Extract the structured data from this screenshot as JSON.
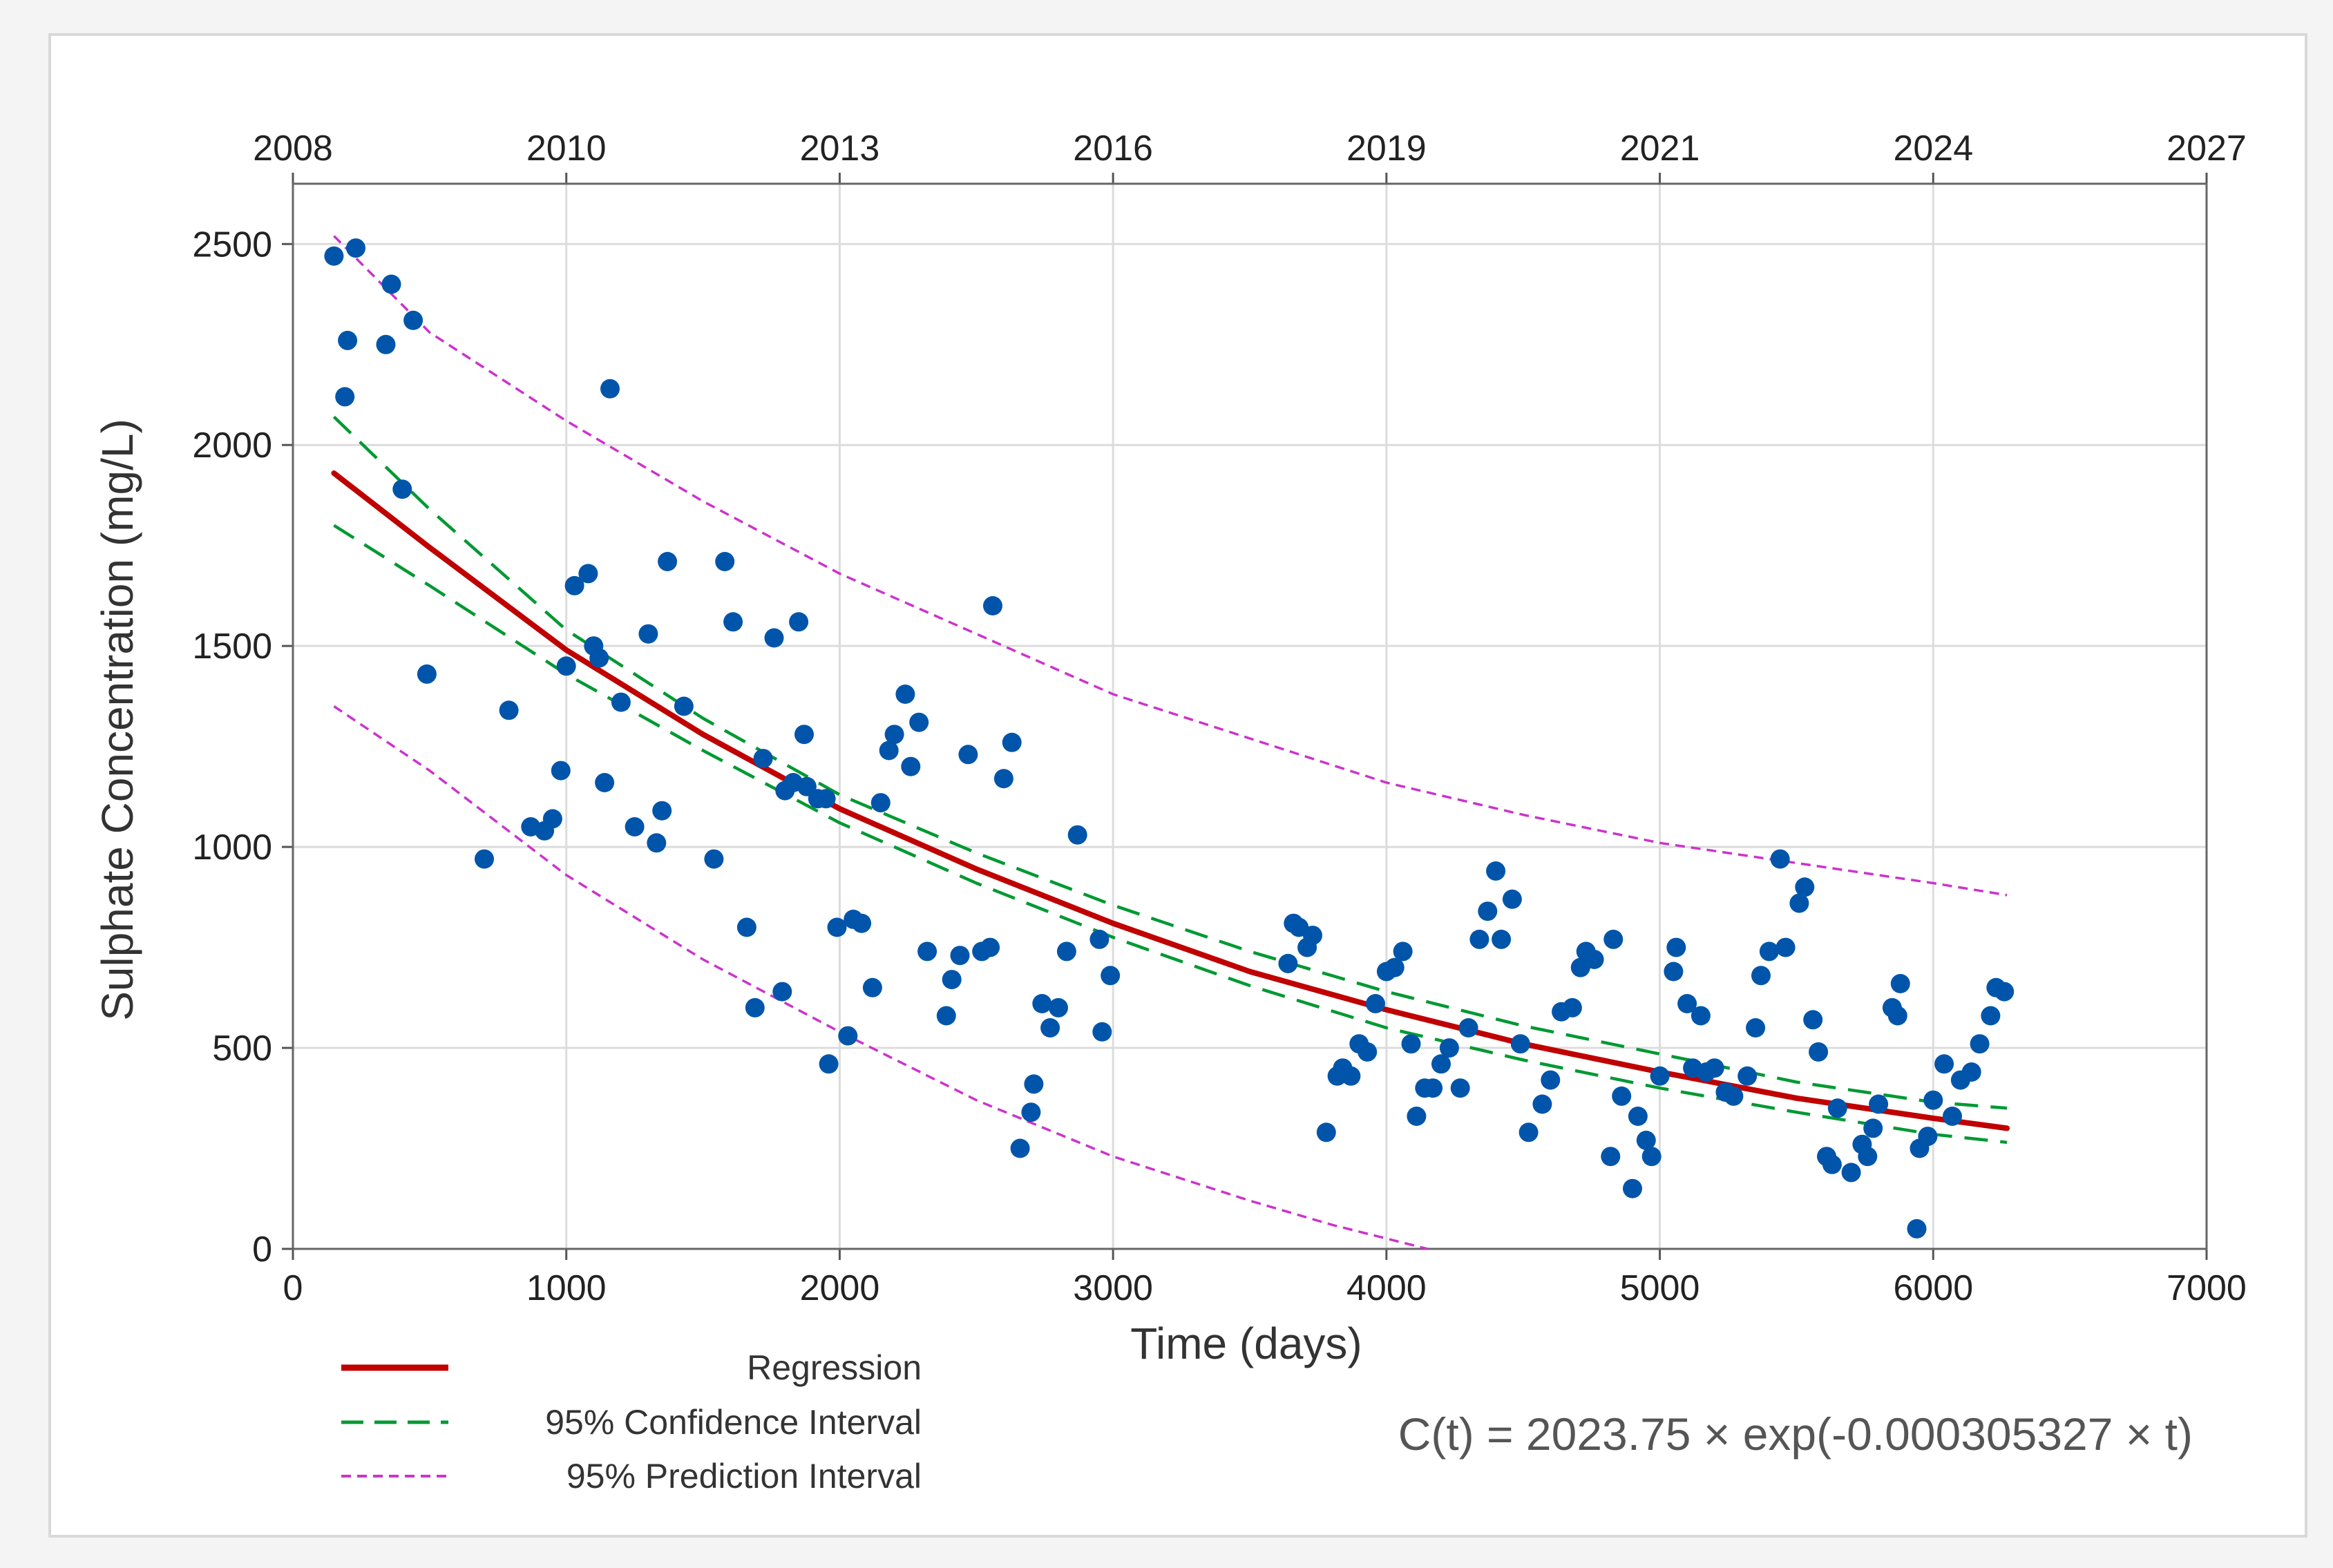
{
  "chart_data": {
    "type": "scatter",
    "xlabel": "Time (days)",
    "ylabel": "Sulphate Concentration (mg/L)",
    "xlim": [
      0,
      7000
    ],
    "ylim": [
      0,
      2650
    ],
    "grid": true,
    "x_ticks": [
      0,
      1000,
      2000,
      3000,
      4000,
      5000,
      6000,
      7000
    ],
    "y_ticks": [
      0,
      500,
      1000,
      1500,
      2000,
      2500
    ],
    "top_axis": {
      "labels": [
        "2008",
        "2010",
        "2013",
        "2016",
        "2019",
        "2021",
        "2024",
        "2027"
      ],
      "positions_days": [
        0,
        1000,
        2000,
        3000,
        4000,
        5000,
        6000,
        7000
      ]
    },
    "legend_position": "bottom-left",
    "legend": [
      "Regression",
      "95% Confidence Interval",
      "95% Prediction Interval"
    ],
    "equation": "C(t) = 2023.75 × exp(-0.000305327 × t)",
    "series": [
      {
        "name": "Regression",
        "kind": "line",
        "color": "#c00000",
        "x": [
          150,
          500,
          1000,
          1500,
          2000,
          2500,
          3000,
          3500,
          4000,
          4500,
          5000,
          5500,
          6000,
          6270
        ],
        "values": [
          1930,
          1745,
          1490,
          1280,
          1095,
          945,
          810,
          690,
          595,
          510,
          440,
          375,
          325,
          300
        ]
      },
      {
        "name": "95% Confidence Interval (upper)",
        "kind": "dashed-line",
        "color": "#009933",
        "x": [
          150,
          500,
          1000,
          1500,
          2000,
          2500,
          3000,
          3500,
          4000,
          4500,
          5000,
          5500,
          6000,
          6270
        ],
        "values": [
          2070,
          1840,
          1540,
          1320,
          1130,
          985,
          855,
          740,
          640,
          555,
          485,
          415,
          365,
          350
        ]
      },
      {
        "name": "95% Confidence Interval (lower)",
        "kind": "dashed-line",
        "color": "#009933",
        "x": [
          150,
          500,
          1000,
          1500,
          2000,
          2500,
          3000,
          3500,
          4000,
          4500,
          5000,
          5500,
          6000,
          6270
        ],
        "values": [
          1800,
          1650,
          1430,
          1240,
          1060,
          910,
          775,
          655,
          550,
          470,
          400,
          340,
          285,
          265
        ]
      },
      {
        "name": "95% Prediction Interval (upper)",
        "kind": "dotted-line",
        "color": "#cc33cc",
        "x": [
          150,
          500,
          1000,
          1500,
          2000,
          2500,
          3000,
          3500,
          4000,
          4500,
          5000,
          5500,
          6000,
          6270
        ],
        "values": [
          2520,
          2280,
          2060,
          1860,
          1680,
          1530,
          1380,
          1270,
          1160,
          1080,
          1010,
          960,
          910,
          880
        ]
      },
      {
        "name": "95% Prediction Interval (lower)",
        "kind": "dotted-line",
        "color": "#cc33cc",
        "x": [
          150,
          500,
          1000,
          1500,
          2000,
          2500,
          3000,
          3500,
          3800,
          4150
        ],
        "values": [
          1350,
          1190,
          930,
          720,
          540,
          370,
          230,
          120,
          60,
          0
        ]
      },
      {
        "name": "Observations",
        "kind": "points",
        "color": "#0055aa",
        "points": [
          [
            150,
            2470
          ],
          [
            230,
            2490
          ],
          [
            190,
            2120
          ],
          [
            200,
            2260
          ],
          [
            340,
            2250
          ],
          [
            360,
            2400
          ],
          [
            440,
            2310
          ],
          [
            400,
            1890
          ],
          [
            490,
            1430
          ],
          [
            700,
            970
          ],
          [
            790,
            1340
          ],
          [
            870,
            1050
          ],
          [
            920,
            1040
          ],
          [
            950,
            1070
          ],
          [
            980,
            1190
          ],
          [
            1000,
            1450
          ],
          [
            1030,
            1650
          ],
          [
            1080,
            1680
          ],
          [
            1100,
            1500
          ],
          [
            1120,
            1470
          ],
          [
            1140,
            1160
          ],
          [
            1160,
            2140
          ],
          [
            1200,
            1360
          ],
          [
            1250,
            1050
          ],
          [
            1300,
            1530
          ],
          [
            1330,
            1010
          ],
          [
            1350,
            1090
          ],
          [
            1370,
            1710
          ],
          [
            1430,
            1350
          ],
          [
            1540,
            970
          ],
          [
            1580,
            1710
          ],
          [
            1610,
            1560
          ],
          [
            1660,
            800
          ],
          [
            1690,
            600
          ],
          [
            1720,
            1220
          ],
          [
            1760,
            1520
          ],
          [
            1790,
            640
          ],
          [
            1800,
            1140
          ],
          [
            1830,
            1160
          ],
          [
            1850,
            1560
          ],
          [
            1870,
            1280
          ],
          [
            1880,
            1150
          ],
          [
            1920,
            1120
          ],
          [
            1950,
            1120
          ],
          [
            1960,
            460
          ],
          [
            1990,
            800
          ],
          [
            2030,
            530
          ],
          [
            2050,
            820
          ],
          [
            2080,
            810
          ],
          [
            2120,
            650
          ],
          [
            2150,
            1110
          ],
          [
            2180,
            1240
          ],
          [
            2200,
            1280
          ],
          [
            2240,
            1380
          ],
          [
            2260,
            1200
          ],
          [
            2290,
            1310
          ],
          [
            2320,
            740
          ],
          [
            2390,
            580
          ],
          [
            2410,
            670
          ],
          [
            2440,
            730
          ],
          [
            2470,
            1230
          ],
          [
            2520,
            740
          ],
          [
            2550,
            750
          ],
          [
            2560,
            1600
          ],
          [
            2600,
            1170
          ],
          [
            2630,
            1260
          ],
          [
            2660,
            250
          ],
          [
            2700,
            340
          ],
          [
            2710,
            410
          ],
          [
            2740,
            610
          ],
          [
            2770,
            550
          ],
          [
            2800,
            600
          ],
          [
            2830,
            740
          ],
          [
            2870,
            1030
          ],
          [
            2950,
            770
          ],
          [
            2960,
            540
          ],
          [
            2990,
            680
          ],
          [
            3640,
            710
          ],
          [
            3660,
            810
          ],
          [
            3680,
            800
          ],
          [
            3710,
            750
          ],
          [
            3730,
            780
          ],
          [
            3780,
            290
          ],
          [
            3820,
            430
          ],
          [
            3840,
            450
          ],
          [
            3870,
            430
          ],
          [
            3900,
            510
          ],
          [
            3930,
            490
          ],
          [
            3960,
            610
          ],
          [
            4000,
            690
          ],
          [
            4030,
            700
          ],
          [
            4060,
            740
          ],
          [
            4090,
            510
          ],
          [
            4110,
            330
          ],
          [
            4140,
            400
          ],
          [
            4170,
            400
          ],
          [
            4200,
            460
          ],
          [
            4230,
            500
          ],
          [
            4270,
            400
          ],
          [
            4300,
            550
          ],
          [
            4340,
            770
          ],
          [
            4370,
            840
          ],
          [
            4400,
            940
          ],
          [
            4420,
            770
          ],
          [
            4460,
            870
          ],
          [
            4490,
            510
          ],
          [
            4520,
            290
          ],
          [
            4570,
            360
          ],
          [
            4600,
            420
          ],
          [
            4640,
            590
          ],
          [
            4680,
            600
          ],
          [
            4710,
            700
          ],
          [
            4730,
            740
          ],
          [
            4760,
            720
          ],
          [
            4820,
            230
          ],
          [
            4830,
            770
          ],
          [
            4860,
            380
          ],
          [
            4900,
            150
          ],
          [
            4920,
            330
          ],
          [
            4950,
            270
          ],
          [
            4970,
            230
          ],
          [
            5000,
            430
          ],
          [
            5050,
            690
          ],
          [
            5060,
            750
          ],
          [
            5100,
            610
          ],
          [
            5120,
            450
          ],
          [
            5150,
            580
          ],
          [
            5170,
            440
          ],
          [
            5200,
            450
          ],
          [
            5240,
            390
          ],
          [
            5270,
            380
          ],
          [
            5320,
            430
          ],
          [
            5350,
            550
          ],
          [
            5370,
            680
          ],
          [
            5400,
            740
          ],
          [
            5440,
            970
          ],
          [
            5460,
            750
          ],
          [
            5510,
            860
          ],
          [
            5530,
            900
          ],
          [
            5560,
            570
          ],
          [
            5580,
            490
          ],
          [
            5610,
            230
          ],
          [
            5630,
            210
          ],
          [
            5650,
            350
          ],
          [
            5700,
            190
          ],
          [
            5740,
            260
          ],
          [
            5760,
            230
          ],
          [
            5780,
            300
          ],
          [
            5800,
            360
          ],
          [
            5850,
            600
          ],
          [
            5870,
            580
          ],
          [
            5880,
            660
          ],
          [
            5940,
            50
          ],
          [
            5950,
            250
          ],
          [
            5980,
            280
          ],
          [
            6000,
            370
          ],
          [
            6040,
            460
          ],
          [
            6070,
            330
          ],
          [
            6100,
            420
          ],
          [
            6140,
            440
          ],
          [
            6170,
            510
          ],
          [
            6210,
            580
          ],
          [
            6230,
            650
          ],
          [
            6260,
            640
          ]
        ]
      }
    ]
  }
}
